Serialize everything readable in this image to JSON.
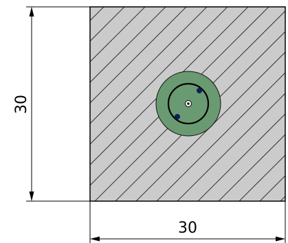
{
  "dimensions": {
    "width_label": "30",
    "height_label": "30"
  },
  "colors": {
    "section_fill": "#cbcbcb",
    "hatch": "#333333",
    "outline": "#000000",
    "boss_fill": "#6a9a72",
    "boss_edge": "#111111",
    "dot": "#0c1f58"
  }
}
